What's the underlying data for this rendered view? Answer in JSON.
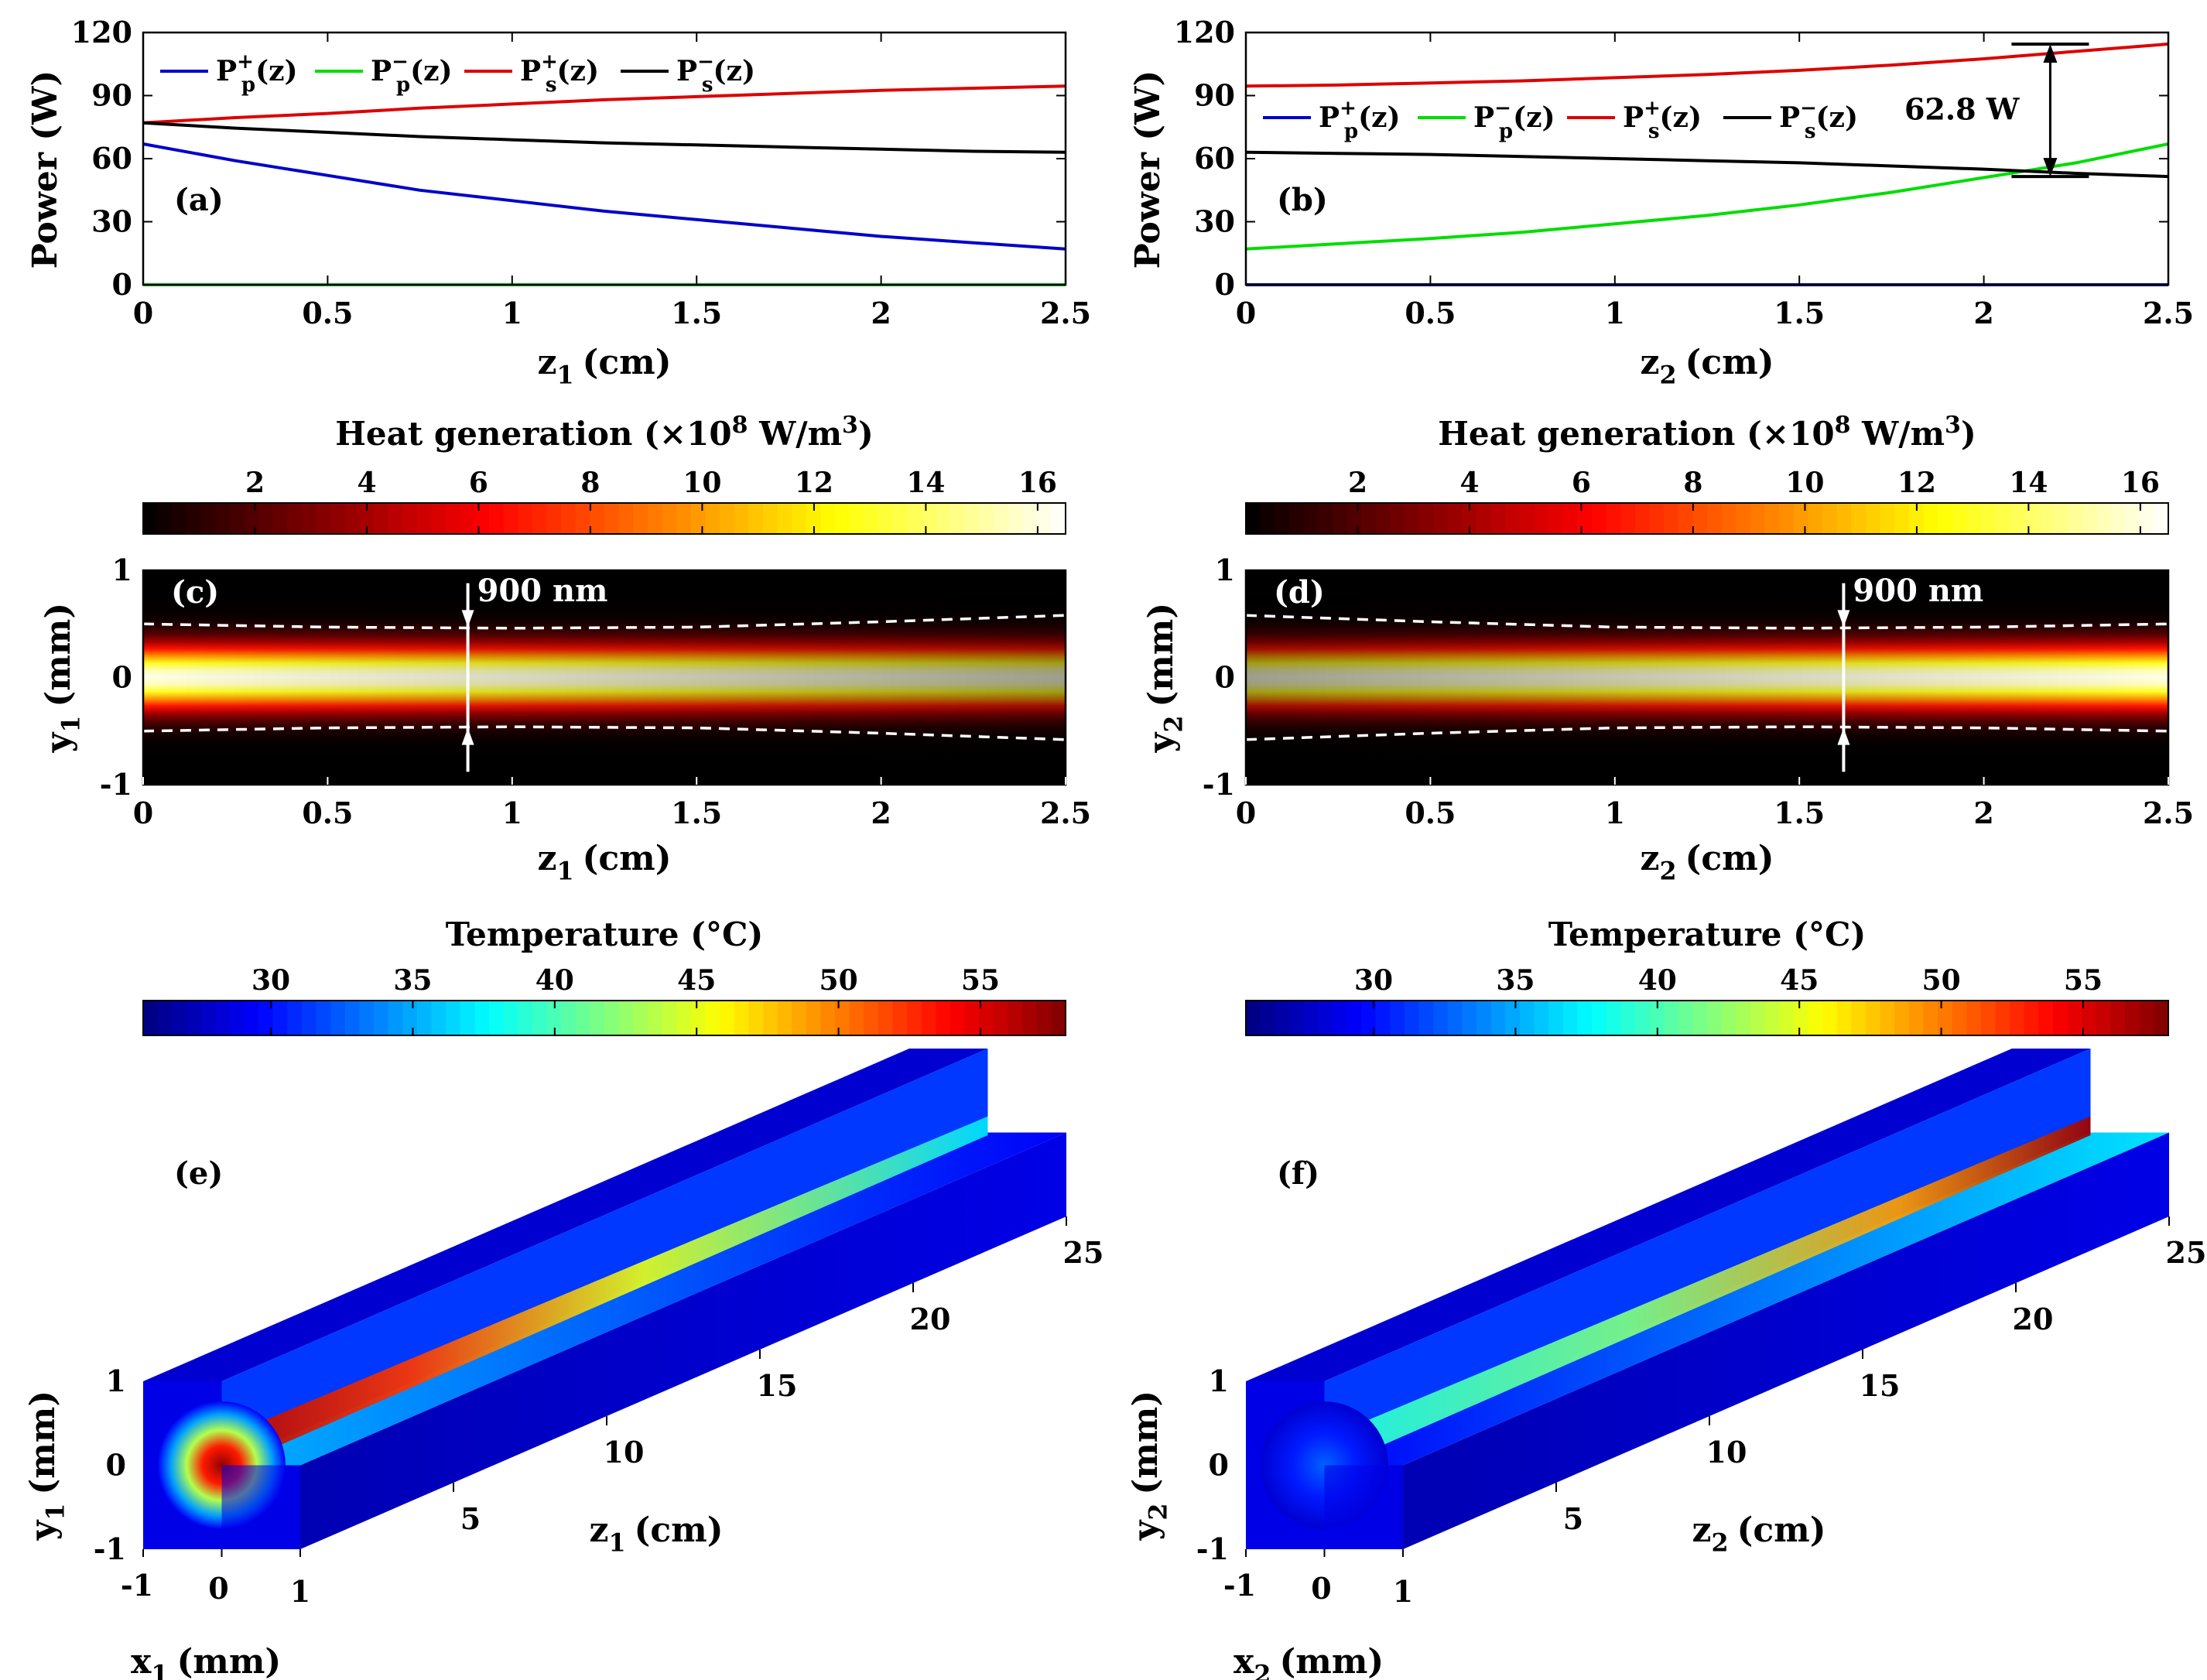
{
  "colors": {
    "pp_plus": "#0000cc",
    "pp_minus": "#00dd00",
    "ps_plus": "#dd0000",
    "ps_minus": "#000000",
    "dashed": "#ffffff",
    "arrow": "#000000"
  },
  "chart_data": [
    {
      "id": "a",
      "type": "line",
      "panel_label": "(a)",
      "xlabel_var": "z",
      "xlabel_sub": "1",
      "xlabel_unit": "(cm)",
      "ylabel": "Power (W)",
      "xlim": [
        0,
        2.5
      ],
      "ylim": [
        0,
        120
      ],
      "xticks": [
        "0",
        "0.5",
        "1",
        "1.5",
        "2",
        "2.5"
      ],
      "yticks": [
        "0",
        "30",
        "60",
        "90",
        "120"
      ],
      "legend": "top",
      "series": [
        {
          "name": "P_p^+(z)",
          "base": "P",
          "sub": "p",
          "sup": "+",
          "suffix": "(z)",
          "color_key": "pp_plus",
          "x": [
            0,
            0.25,
            0.5,
            0.75,
            1.0,
            1.25,
            1.5,
            1.75,
            2.0,
            2.25,
            2.5
          ],
          "y": [
            67,
            59,
            52,
            45,
            40,
            35,
            31,
            27,
            23,
            20,
            17
          ]
        },
        {
          "name": "P_p^-(z)",
          "base": "P",
          "sub": "p",
          "sup": "−",
          "suffix": "(z)",
          "color_key": "pp_minus",
          "x": [
            0,
            2.5
          ],
          "y": [
            0,
            0
          ]
        },
        {
          "name": "P_s^+(z)",
          "base": "P",
          "sub": "s",
          "sup": "+",
          "suffix": "(z)",
          "color_key": "ps_plus",
          "x": [
            0,
            0.25,
            0.5,
            0.75,
            1.0,
            1.25,
            1.5,
            1.75,
            2.0,
            2.25,
            2.5
          ],
          "y": [
            77,
            79.5,
            81.5,
            84,
            86,
            88,
            89.5,
            91,
            92.5,
            93.5,
            94.5
          ]
        },
        {
          "name": "P_s^-(z)",
          "base": "P",
          "sub": "s",
          "sup": "−",
          "suffix": "(z)",
          "color_key": "ps_minus",
          "x": [
            0,
            0.25,
            0.5,
            0.75,
            1.0,
            1.25,
            1.5,
            1.75,
            2.0,
            2.25,
            2.5
          ],
          "y": [
            77,
            74.5,
            72.5,
            70.5,
            69,
            67.5,
            66.5,
            65.5,
            64.5,
            63.5,
            63
          ]
        }
      ]
    },
    {
      "id": "b",
      "type": "line",
      "panel_label": "(b)",
      "xlabel_var": "z",
      "xlabel_sub": "2",
      "xlabel_unit": "(cm)",
      "ylabel": "Power (W)",
      "xlim": [
        0,
        2.5
      ],
      "ylim": [
        0,
        120
      ],
      "xticks": [
        "0",
        "0.5",
        "1",
        "1.5",
        "2",
        "2.5"
      ],
      "yticks": [
        "0",
        "30",
        "60",
        "90",
        "120"
      ],
      "legend": "middle",
      "annotation": {
        "text": "62.8 W",
        "z": 2.18,
        "y_top": 114.5,
        "y_bottom": 51.5
      },
      "series": [
        {
          "name": "P_p^+(z)",
          "base": "P",
          "sub": "p",
          "sup": "+",
          "suffix": "(z)",
          "color_key": "pp_plus",
          "x": [
            0,
            2.5
          ],
          "y": [
            0,
            0
          ]
        },
        {
          "name": "P_p^-(z)",
          "base": "P",
          "sub": "p",
          "sup": "−",
          "suffix": "(z)",
          "color_key": "pp_minus",
          "x": [
            0,
            0.25,
            0.5,
            0.75,
            1.0,
            1.25,
            1.5,
            1.75,
            2.0,
            2.25,
            2.5
          ],
          "y": [
            17,
            19.5,
            22,
            25,
            29,
            33,
            38,
            44,
            51,
            58,
            67
          ]
        },
        {
          "name": "P_s^+(z)",
          "base": "P",
          "sub": "s",
          "sup": "+",
          "suffix": "(z)",
          "color_key": "ps_plus",
          "x": [
            0,
            0.25,
            0.5,
            0.75,
            1.0,
            1.25,
            1.5,
            1.75,
            2.0,
            2.25,
            2.5
          ],
          "y": [
            94.5,
            95,
            96,
            97,
            98.5,
            100,
            102,
            104.5,
            107.5,
            111,
            114.5
          ]
        },
        {
          "name": "P_s^-(z)",
          "base": "P",
          "sub": "s",
          "sup": "−",
          "suffix": "(z)",
          "color_key": "ps_minus",
          "x": [
            0,
            0.25,
            0.5,
            0.75,
            1.0,
            1.25,
            1.5,
            1.75,
            2.0,
            2.25,
            2.5
          ],
          "y": [
            63,
            62.5,
            62,
            61,
            60,
            59,
            58,
            56.5,
            55,
            53,
            51.5
          ]
        }
      ]
    },
    {
      "id": "c",
      "type": "heatmap",
      "panel_label": "(c)",
      "colorbar_label_pre": "Heat generation (×10",
      "colorbar_label_exp": "8",
      "colorbar_label_mid": " W/m",
      "colorbar_label_exp2": "3",
      "colorbar_label_post": ")",
      "colormap": "hot",
      "clim": [
        0,
        16.5
      ],
      "cticks": [
        "2",
        "4",
        "6",
        "8",
        "10",
        "12",
        "14",
        "16"
      ],
      "ctick_values": [
        2,
        4,
        6,
        8,
        10,
        12,
        14,
        16
      ],
      "xlabel_var": "z",
      "xlabel_sub": "1",
      "xlabel_unit": "(cm)",
      "ylabel_var": "y",
      "ylabel_sub": "1",
      "ylabel_unit": "(mm)",
      "xlim": [
        0,
        2.5
      ],
      "ylim": [
        -1,
        1
      ],
      "xticks": [
        "0",
        "0.5",
        "1",
        "1.5",
        "2",
        "2.5"
      ],
      "yticks": [
        "-1",
        "0",
        "1"
      ],
      "beam_width_z": [
        0,
        0.5,
        1.0,
        1.5,
        2.0,
        2.5
      ],
      "beam_width_y": [
        0.5,
        0.47,
        0.46,
        0.47,
        0.52,
        0.58
      ],
      "intensity": "decreasing",
      "arrow_z": 0.88,
      "arrow_label": "900 nm"
    },
    {
      "id": "d",
      "type": "heatmap",
      "panel_label": "(d)",
      "colorbar_label_pre": "Heat generation (×10",
      "colorbar_label_exp": "8",
      "colorbar_label_mid": " W/m",
      "colorbar_label_exp2": "3",
      "colorbar_label_post": ")",
      "colormap": "hot",
      "clim": [
        0,
        16.5
      ],
      "cticks": [
        "2",
        "4",
        "6",
        "8",
        "10",
        "12",
        "14",
        "16"
      ],
      "ctick_values": [
        2,
        4,
        6,
        8,
        10,
        12,
        14,
        16
      ],
      "xlabel_var": "z",
      "xlabel_sub": "2",
      "xlabel_unit": "(cm)",
      "ylabel_var": "y",
      "ylabel_sub": "2",
      "ylabel_unit": "(mm)",
      "xlim": [
        0,
        2.5
      ],
      "ylim": [
        -1,
        1
      ],
      "xticks": [
        "0",
        "0.5",
        "1",
        "1.5",
        "2",
        "2.5"
      ],
      "yticks": [
        "-1",
        "0",
        "1"
      ],
      "beam_width_z": [
        0,
        0.5,
        1.0,
        1.5,
        2.0,
        2.5
      ],
      "beam_width_y": [
        0.58,
        0.52,
        0.47,
        0.46,
        0.47,
        0.5
      ],
      "intensity": "increasing",
      "arrow_z": 1.62,
      "arrow_label": "900 nm"
    },
    {
      "id": "e",
      "type": "heatmap",
      "panel_label": "(e)",
      "colorbar_label": "Temperature (°C)",
      "colormap": "jet",
      "clim": [
        25.5,
        58
      ],
      "cticks": [
        "30",
        "35",
        "40",
        "45",
        "50",
        "55"
      ],
      "ctick_values": [
        30,
        35,
        40,
        45,
        50,
        55
      ],
      "xlabel_var": "x",
      "xlabel_sub": "1",
      "xlabel_unit": "(mm)",
      "ylabel_var": "y",
      "ylabel_sub": "1",
      "ylabel_unit": "(mm)",
      "zlabel_var": "z",
      "zlabel_sub": "1",
      "zlabel_unit": "(cm)",
      "xticks": [
        "-1",
        "0",
        "1"
      ],
      "yticks": [
        "-1",
        "0",
        "1"
      ],
      "zticks": [
        "5",
        "10",
        "15",
        "20",
        "25"
      ],
      "hot_end": "front"
    },
    {
      "id": "f",
      "type": "heatmap",
      "panel_label": "(f)",
      "colorbar_label": "Temperature (°C)",
      "colormap": "jet",
      "clim": [
        25.5,
        58
      ],
      "cticks": [
        "30",
        "35",
        "40",
        "45",
        "50",
        "55"
      ],
      "ctick_values": [
        30,
        35,
        40,
        45,
        50,
        55
      ],
      "xlabel_var": "x",
      "xlabel_sub": "2",
      "xlabel_unit": "(mm)",
      "ylabel_var": "y",
      "ylabel_sub": "2",
      "ylabel_unit": "(mm)",
      "zlabel_var": "z",
      "zlabel_sub": "2",
      "zlabel_unit": "(cm)",
      "xticks": [
        "-1",
        "0",
        "1"
      ],
      "yticks": [
        "-1",
        "0",
        "1"
      ],
      "zticks": [
        "5",
        "10",
        "15",
        "20",
        "25"
      ],
      "hot_end": "back"
    }
  ]
}
